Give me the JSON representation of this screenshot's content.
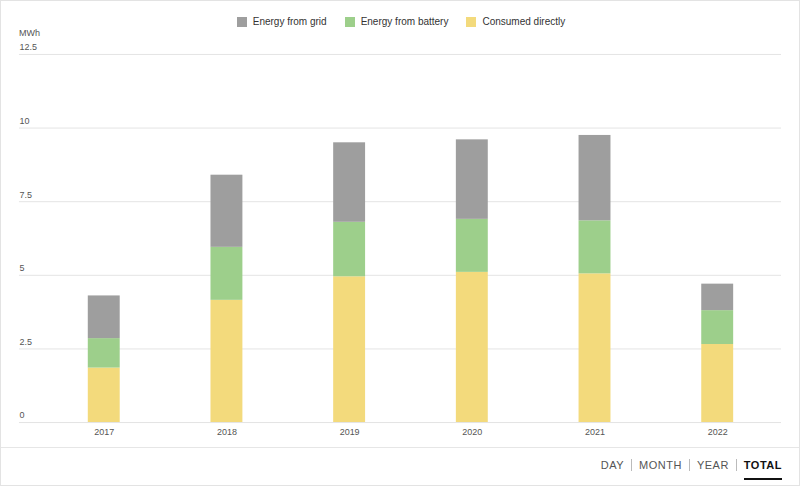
{
  "chart_data": {
    "type": "bar",
    "stacked": true,
    "ylabel": "MWh",
    "categories": [
      "2017",
      "2018",
      "2019",
      "2020",
      "2021",
      "2022"
    ],
    "series": [
      {
        "name": "Energy from grid",
        "color": "#9e9e9e",
        "values": [
          1.45,
          2.45,
          2.7,
          2.7,
          2.9,
          0.9
        ]
      },
      {
        "name": "Energy from battery",
        "color": "#9dcf8b",
        "values": [
          1.0,
          1.8,
          1.85,
          1.8,
          1.8,
          1.15
        ]
      },
      {
        "name": "Consumed directly",
        "color": "#f3da7c",
        "values": [
          1.85,
          4.15,
          4.95,
          5.1,
          5.05,
          2.65
        ]
      }
    ],
    "ylim": [
      0,
      12.5
    ],
    "yticks": [
      0,
      2.5,
      5,
      7.5,
      10,
      12.5
    ],
    "grid": true,
    "legend": "top"
  },
  "view_buttons": {
    "options": [
      "DAY",
      "MONTH",
      "YEAR",
      "TOTAL"
    ],
    "selected": "TOTAL"
  }
}
